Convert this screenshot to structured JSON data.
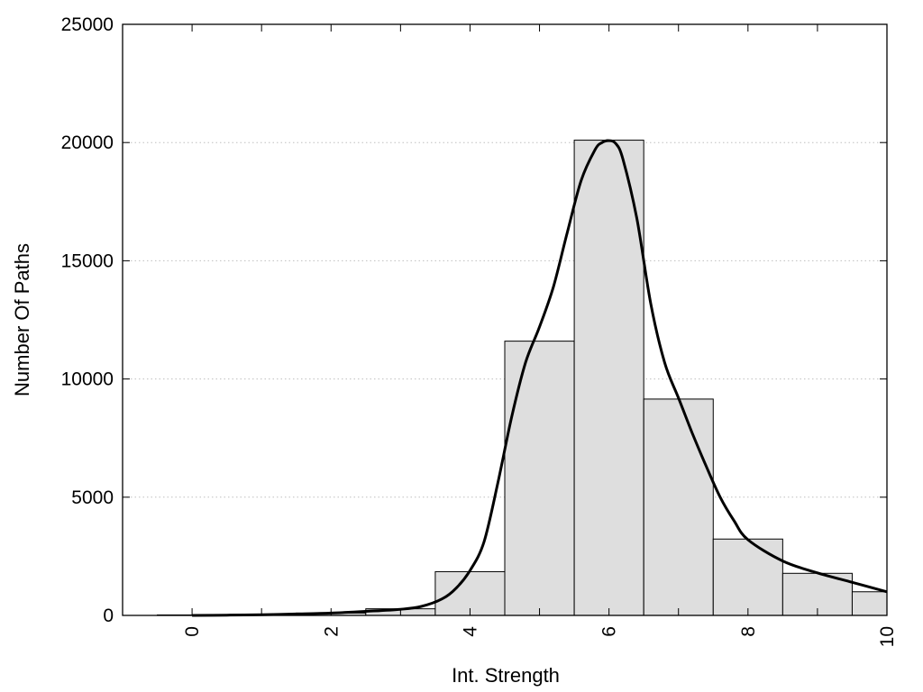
{
  "chart_data": {
    "type": "bar",
    "title": "",
    "xlabel": "Int. Strength",
    "ylabel": "Number Of Paths",
    "xlim": [
      -1,
      10
    ],
    "ylim": [
      0,
      25000
    ],
    "x_ticks": [
      0,
      2,
      4,
      6,
      8,
      10
    ],
    "x_tick_labels": [
      "0",
      "2",
      "4",
      "6",
      "8",
      "10"
    ],
    "y_ticks": [
      0,
      5000,
      10000,
      15000,
      20000,
      25000
    ],
    "y_tick_labels": [
      "0",
      "5000",
      "10000",
      "15000",
      "20000",
      "25000"
    ],
    "grid": "horizontal dotted",
    "bar_color": "#dedede",
    "bar_edge_color": "#000000",
    "line_color": "#000000",
    "bars": [
      {
        "x": 0,
        "value": 20
      },
      {
        "x": 1,
        "value": 30
      },
      {
        "x": 2,
        "value": 100
      },
      {
        "x": 3,
        "value": 280
      },
      {
        "x": 4,
        "value": 1850
      },
      {
        "x": 5,
        "value": 11600
      },
      {
        "x": 6,
        "value": 20100
      },
      {
        "x": 7,
        "value": 9150
      },
      {
        "x": 8,
        "value": 3230
      },
      {
        "x": 9,
        "value": 1780
      },
      {
        "x": 10,
        "value": 1000
      }
    ],
    "series": [
      {
        "type": "line",
        "x": [
          0,
          0.5,
          1,
          1.5,
          2,
          2.5,
          3,
          3.3,
          3.6,
          3.8,
          4,
          4.2,
          4.4,
          4.6,
          4.8,
          5,
          5.2,
          5.4,
          5.6,
          5.8,
          5.9,
          6,
          6.1,
          6.2,
          6.4,
          6.6,
          6.8,
          7,
          7.2,
          7.4,
          7.6,
          7.8,
          8,
          8.5,
          9,
          9.5,
          10
        ],
        "y": [
          0,
          10,
          30,
          60,
          100,
          170,
          260,
          380,
          700,
          1150,
          1900,
          3100,
          5600,
          8400,
          10700,
          12200,
          13900,
          16200,
          18400,
          19700,
          20000,
          20080,
          19950,
          19300,
          16800,
          13200,
          10700,
          9200,
          7700,
          6300,
          5000,
          4000,
          3200,
          2300,
          1800,
          1400,
          1000
        ]
      }
    ]
  }
}
